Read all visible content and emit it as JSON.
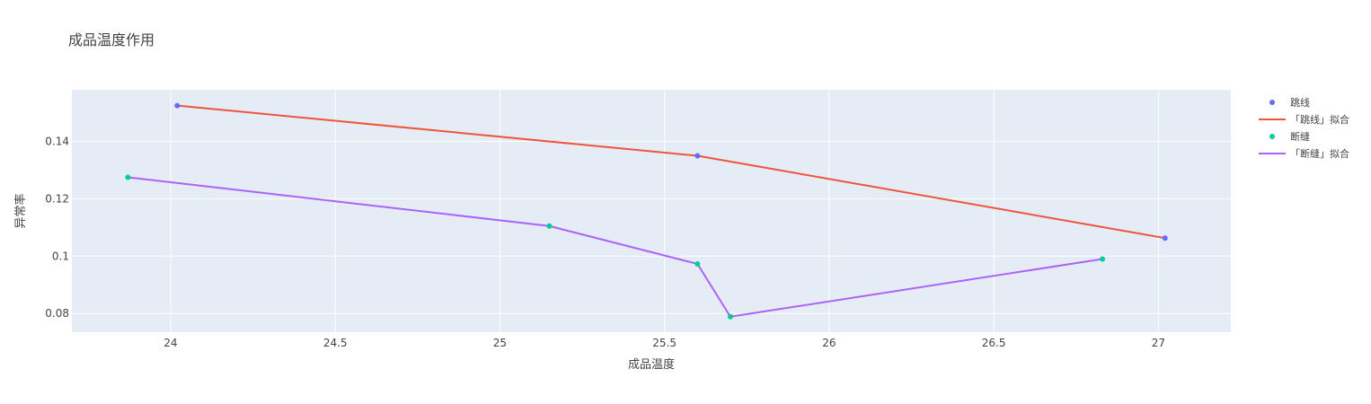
{
  "chart_data": {
    "type": "line",
    "title": "成品温度作用",
    "xlabel": "成品温度",
    "ylabel": "异常率",
    "xlim": [
      23.7,
      27.22
    ],
    "ylim": [
      0.0735,
      0.158
    ],
    "x_ticks": [
      24,
      24.5,
      25,
      25.5,
      26,
      26.5,
      27
    ],
    "x_tick_labels": [
      "24",
      "24.5",
      "25",
      "25.5",
      "26",
      "26.5",
      "27"
    ],
    "y_ticks": [
      0.08,
      0.1,
      0.12,
      0.14
    ],
    "y_tick_labels": [
      "0.08",
      "0.1",
      "0.12",
      "0.14"
    ],
    "grid": true,
    "legend_position": "right",
    "plot_background": "#E5ECF6",
    "series": [
      {
        "name": "跳线",
        "mode": "markers",
        "color": "#636EFA",
        "x": [
          24.02,
          25.6,
          27.02
        ],
        "y": [
          0.1525,
          0.135,
          0.1063
        ]
      },
      {
        "name": "「跳线」拟合",
        "mode": "lines",
        "color": "#EF553B",
        "x": [
          24.02,
          25.6,
          27.02
        ],
        "y": [
          0.1525,
          0.135,
          0.1063
        ]
      },
      {
        "name": "断缝",
        "mode": "markers",
        "color": "#00CC96",
        "x": [
          23.87,
          25.15,
          25.6,
          25.7,
          26.83
        ],
        "y": [
          0.1275,
          0.1105,
          0.0973,
          0.0789,
          0.099
        ]
      },
      {
        "name": "「断缝」拟合",
        "mode": "lines",
        "color": "#AB63FA",
        "x": [
          23.87,
          25.15,
          25.6,
          25.7,
          26.83
        ],
        "y": [
          0.1275,
          0.1105,
          0.0973,
          0.0789,
          0.099
        ]
      }
    ]
  }
}
